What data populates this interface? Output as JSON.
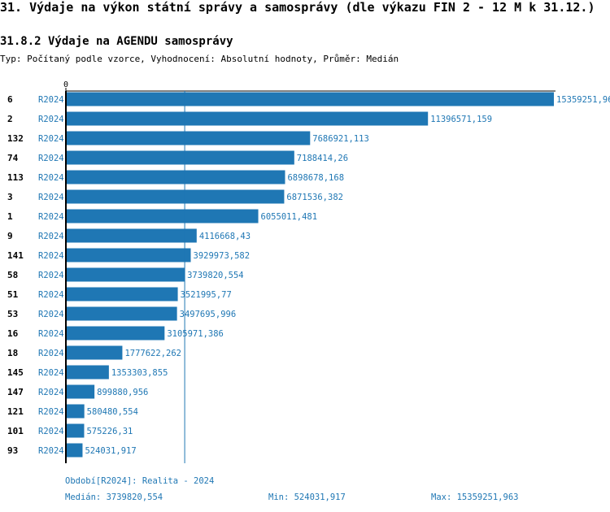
{
  "title": "31. Výdaje na výkon státní správy a samosprávy (dle výkazu FIN 2 - 12 M k 31.12.)",
  "subtitle": "31.8.2 Výdaje na AGENDU samosprávy",
  "description": "Typ: Počítaný podle vzorce, Vyhodnocení: Absolutní hodnoty, Průměr: Medián",
  "colors": {
    "bar": "#1f77b4",
    "text_blue": "#1f77b4",
    "axis": "#000000"
  },
  "chart_data": {
    "type": "bar",
    "orientation": "horizontal",
    "x_tick_labels": [
      "0"
    ],
    "xlim": [
      0,
      15359251.963
    ],
    "grid": false,
    "reference_line": {
      "name": "Medián",
      "value": 3739820.554
    },
    "categories": [
      "6",
      "2",
      "132",
      "74",
      "113",
      "3",
      "1",
      "9",
      "141",
      "58",
      "51",
      "53",
      "16",
      "18",
      "145",
      "147",
      "121",
      "101",
      "93"
    ],
    "period_labels": [
      "R2024",
      "R2024",
      "R2024",
      "R2024",
      "R2024",
      "R2024",
      "R2024",
      "R2024",
      "R2024",
      "R2024",
      "R2024",
      "R2024",
      "R2024",
      "R2024",
      "R2024",
      "R2024",
      "R2024",
      "R2024",
      "R2024"
    ],
    "values": [
      15359251.96,
      11396571.159,
      7686921.113,
      7188414.26,
      6898678.168,
      6871536.382,
      6055011.481,
      4116668.43,
      3929973.582,
      3739820.554,
      3521995.77,
      3497695.996,
      3105971.386,
      1777622.262,
      1353303.855,
      899880.956,
      580480.554,
      575226.31,
      524031.917
    ],
    "value_labels": [
      "15359251,96",
      "11396571,159",
      "7686921,113",
      "7188414,26",
      "6898678,168",
      "6871536,382",
      "6055011,481",
      "4116668,43",
      "3929973,582",
      "3739820,554",
      "3521995,77",
      "3497695,996",
      "3105971,386",
      "1777622,262",
      "1353303,855",
      "899880,956",
      "580480,554",
      "575226,31",
      "524031,917"
    ]
  },
  "footer": {
    "period": "Období[R2024]: Realita - 2024",
    "median": "Medián: 3739820,554",
    "min": "Min: 524031,917",
    "max": "Max: 15359251,963"
  }
}
